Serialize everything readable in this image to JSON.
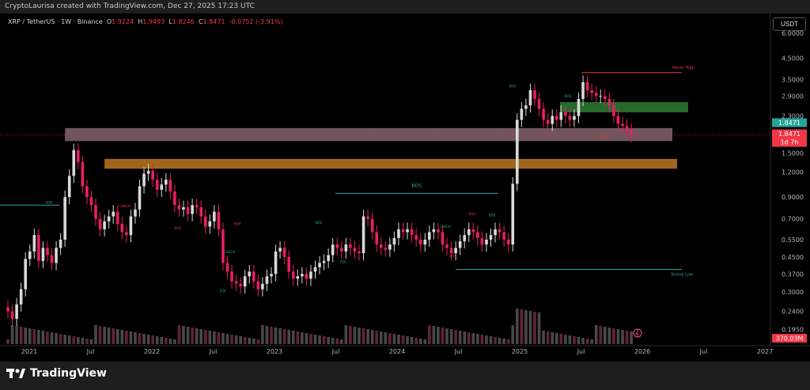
{
  "header": {
    "credit": "CryptoLaurisa created with TradingView.com, Dec 27, 2025 17:23 UTC"
  },
  "legend": {
    "symbol": "XRP / TetherUS · 1W · Binance",
    "o_label": "O",
    "o": "1.9224",
    "h_label": "H",
    "h": "1.9493",
    "l_label": "L",
    "l": "1.8246",
    "c_label": "C",
    "c": "1.8471",
    "change": "-0.0752 (-3.91%)"
  },
  "price_axis": {
    "currency": "USDT",
    "ticks": [
      "6.0000",
      "4.5000",
      "3.5000",
      "2.9000",
      "2.3000",
      "1.8471",
      "1.5000",
      "1.2000",
      "0.9000",
      "0.7000",
      "0.5500",
      "0.4500",
      "0.3700",
      "0.3000",
      "0.2400",
      "0.1950"
    ],
    "last_price": "1.8471",
    "last_price_tag": "1.8471",
    "countdown": "1d 7h",
    "volume_tag": "370.03M"
  },
  "time_axis": {
    "labels": [
      "2021",
      "Jul",
      "2022",
      "Jul",
      "2023",
      "Jul",
      "2024",
      "Jul",
      "2025",
      "Jul",
      "2026",
      "Jul",
      "2027"
    ]
  },
  "annotations": {
    "bos_main": "BOS",
    "bos_small": "BOS",
    "choch": "CHoCH",
    "eqh": "EQH",
    "eql": "EQL",
    "never_high": "Never High",
    "strong_low": "Strong Low"
  },
  "colors": {
    "bull": "#d9d9d9",
    "bear": "#e91e63",
    "zone_pink": "#f8bbd0",
    "zone_orange": "#f59d2a",
    "zone_green": "#2e7d32",
    "bos_line": "#26a69a",
    "never_high_line": "#f23645"
  },
  "footer": {
    "brand": "TradingView"
  },
  "chart_data": {
    "type": "candlestick",
    "yscale": "log",
    "ylim": [
      0.18,
      7.0
    ],
    "x_range": [
      "2020-11",
      "2027-03"
    ],
    "levels": {
      "never_high": 3.8,
      "strong_low": 0.39,
      "bos_main": 0.94,
      "pink_zone": [
        1.72,
        2.0
      ],
      "orange_zone": [
        1.25,
        1.4
      ],
      "green_zone": [
        2.4,
        2.7
      ]
    },
    "closes": [
      0.24,
      0.22,
      0.26,
      0.31,
      0.44,
      0.48,
      0.58,
      0.43,
      0.5,
      0.46,
      0.42,
      0.5,
      0.55,
      0.9,
      1.15,
      1.55,
      1.35,
      1.02,
      0.9,
      0.82,
      0.7,
      0.62,
      0.68,
      0.72,
      0.76,
      0.66,
      0.6,
      0.58,
      0.72,
      0.78,
      1.02,
      1.18,
      1.22,
      1.1,
      0.98,
      1.04,
      1.1,
      0.96,
      0.82,
      0.78,
      0.8,
      0.74,
      0.82,
      0.8,
      0.72,
      0.64,
      0.68,
      0.76,
      0.62,
      0.42,
      0.38,
      0.34,
      0.33,
      0.32,
      0.36,
      0.38,
      0.34,
      0.31,
      0.33,
      0.36,
      0.37,
      0.48,
      0.5,
      0.45,
      0.38,
      0.35,
      0.36,
      0.37,
      0.35,
      0.38,
      0.4,
      0.42,
      0.43,
      0.46,
      0.52,
      0.5,
      0.48,
      0.52,
      0.5,
      0.48,
      0.47,
      0.72,
      0.7,
      0.6,
      0.52,
      0.5,
      0.49,
      0.52,
      0.56,
      0.62,
      0.6,
      0.62,
      0.58,
      0.55,
      0.52,
      0.55,
      0.6,
      0.62,
      0.6,
      0.52,
      0.5,
      0.47,
      0.5,
      0.54,
      0.58,
      0.62,
      0.6,
      0.56,
      0.52,
      0.55,
      0.58,
      0.62,
      0.6,
      0.55,
      0.52,
      1.05,
      2.2,
      2.5,
      2.6,
      3.1,
      2.8,
      2.5,
      2.2,
      2.1,
      2.3,
      2.2,
      2.4,
      2.3,
      2.2,
      2.3,
      2.8,
      3.4,
      3.1,
      3.0,
      2.9,
      2.9,
      2.8,
      2.6,
      2.3,
      2.1,
      2.05,
      1.95,
      1.85
    ],
    "volume_unit": "M"
  }
}
